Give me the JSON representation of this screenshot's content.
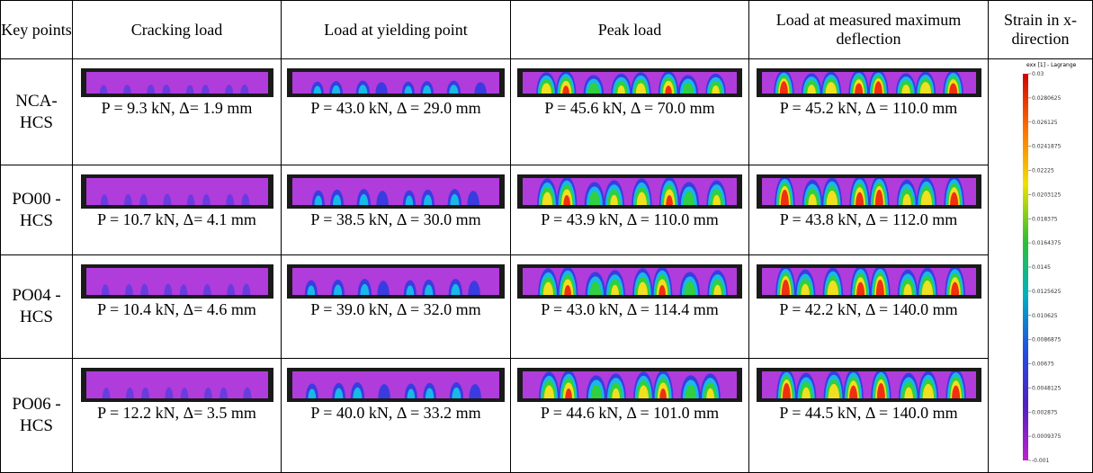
{
  "header": {
    "columns": [
      "Key points",
      "Cracking load",
      "Load at yielding point",
      "Peak load",
      "Load at measured maximum deflection",
      "Strain in x-direction"
    ]
  },
  "rows": [
    {
      "label": "NCA-HCS",
      "cells": [
        "P = 9.3 kN, Δ= 1.9 mm",
        "P = 43.0 kN, Δ = 29.0 mm",
        "P = 45.6 kN, Δ = 70.0 mm",
        "P = 45.2 kN, Δ = 110.0 mm"
      ]
    },
    {
      "label": "PO00 -HCS",
      "cells": [
        "P = 10.7 kN, Δ= 4.1 mm",
        "P = 38.5 kN, Δ = 30.0 mm",
        "P = 43.9 kN, Δ = 110.0 mm",
        "P = 43.8 kN, Δ = 112.0 mm"
      ]
    },
    {
      "label": "PO04 -HCS",
      "cells": [
        "P = 10.4 kN, Δ= 4.6 mm",
        "P = 39.0 kN, Δ = 32.0 mm",
        "P = 43.0 kN, Δ = 114.4 mm",
        "P = 42.2 kN, Δ = 140.0 mm"
      ]
    },
    {
      "label": "PO06 -HCS",
      "cells": [
        "P = 12.2 kN, Δ= 3.5 mm",
        "P = 40.0 kN, Δ = 33.2 mm",
        "P = 44.6 kN, Δ = 101.0 mm",
        "P = 44.5 kN, Δ = 140.0 mm"
      ]
    }
  ],
  "colorbar": {
    "title": "exx [1] - Lagrange",
    "labels": [
      "0.03",
      "0.0280625",
      "0.026125",
      "0.0241875",
      "0.02225",
      "0.0203125",
      "0.018375",
      "0.0164375",
      "0.0145",
      "0.0125625",
      "0.010625",
      "0.0086875",
      "0.00675",
      "0.0048125",
      "0.002875",
      "0.0009375",
      "-0.001"
    ]
  }
}
